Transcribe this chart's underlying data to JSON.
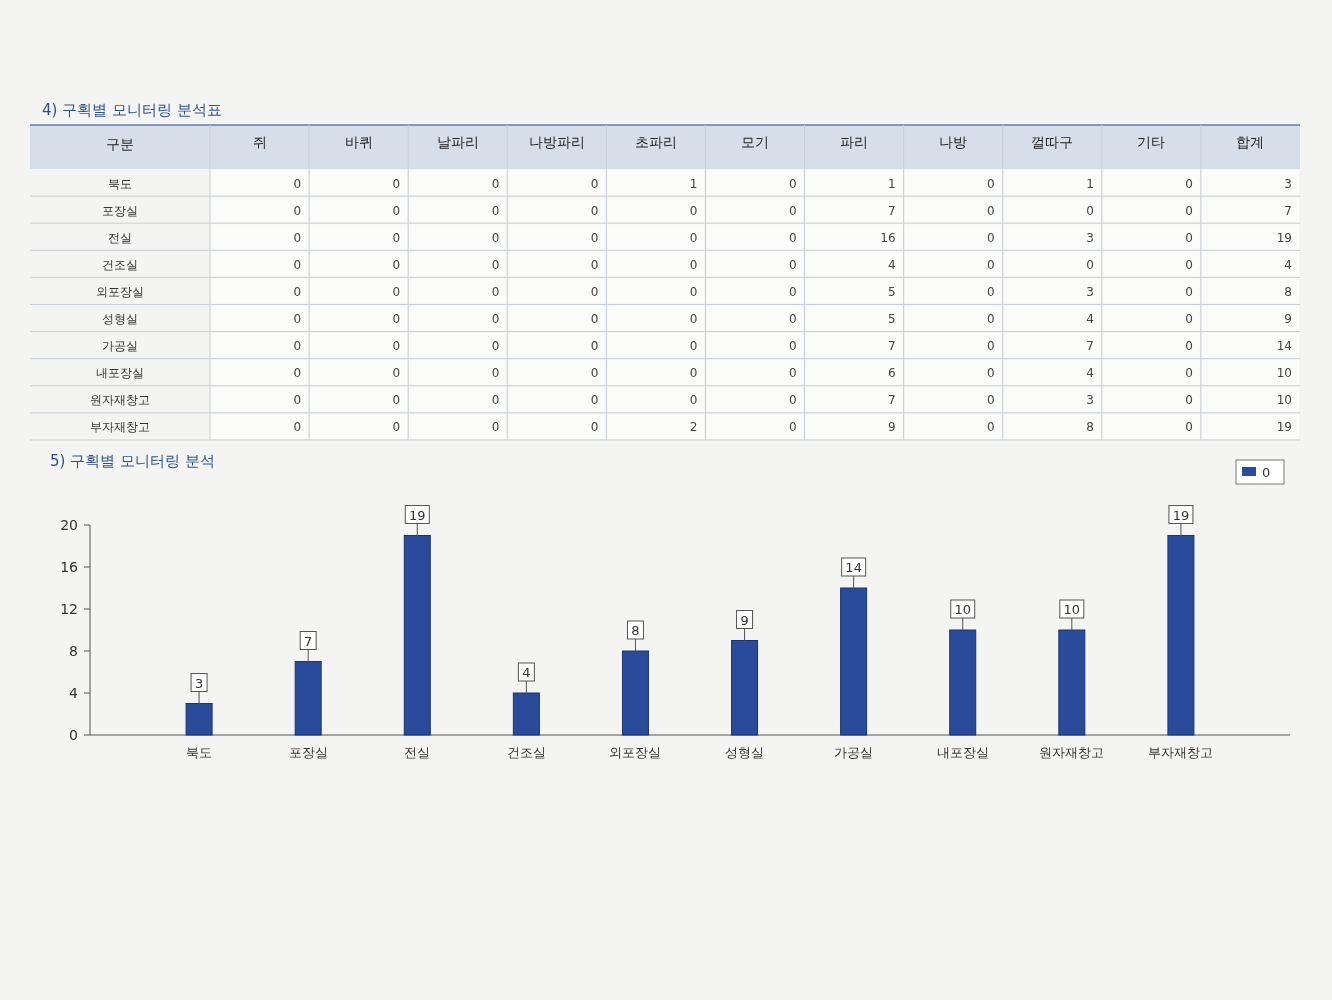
{
  "chart_data": [
    {
      "type": "heatmap",
      "title": "4) 구획별 모니터링 분석표",
      "ylabel": "구분",
      "categories": [
        "쥐",
        "바퀴",
        "날파리",
        "나방파리",
        "초파리",
        "모기",
        "파리",
        "나방",
        "껄따구",
        "기타",
        "합계"
      ],
      "data_labels": true,
      "y_categories": [
        "북도",
        "포장실",
        "전실",
        "건조실",
        "외포장실",
        "성형실",
        "가공실",
        "내포장실",
        "원자재창고",
        "부자재창고"
      ],
      "cells": [
        [
          0,
          0,
          0,
          0,
          1,
          0,
          1,
          0,
          1,
          0,
          3
        ],
        [
          0,
          0,
          0,
          0,
          0,
          0,
          7,
          0,
          0,
          0,
          7
        ],
        [
          0,
          0,
          0,
          0,
          0,
          0,
          16,
          0,
          3,
          0,
          19
        ],
        [
          0,
          0,
          0,
          0,
          0,
          0,
          4,
          0,
          0,
          0,
          4
        ],
        [
          0,
          0,
          0,
          0,
          0,
          0,
          5,
          0,
          3,
          0,
          8
        ],
        [
          0,
          0,
          0,
          0,
          0,
          0,
          5,
          0,
          4,
          0,
          9
        ],
        [
          0,
          0,
          0,
          0,
          0,
          0,
          7,
          0,
          7,
          0,
          14
        ],
        [
          0,
          0,
          0,
          0,
          0,
          0,
          6,
          0,
          4,
          0,
          10
        ],
        [
          0,
          0,
          0,
          0,
          0,
          0,
          7,
          0,
          3,
          0,
          10
        ],
        [
          0,
          0,
          0,
          0,
          2,
          0,
          9,
          0,
          8,
          0,
          19
        ]
      ]
    },
    {
      "type": "bar",
      "title": "5) 구획별 모니터링 분석",
      "categories": [
        "북도",
        "포장실",
        "전실",
        "건조실",
        "외포장실",
        "성형실",
        "가공실",
        "내포장실",
        "원자재창고",
        "부자재창고"
      ],
      "series": [
        {
          "name": "0",
          "color": "#2a4b9a",
          "values": [
            3,
            7,
            19,
            4,
            8,
            9,
            14,
            10,
            10,
            19
          ]
        }
      ],
      "ylim": [
        0,
        20
      ],
      "yticks": [
        0,
        4,
        8,
        12,
        16,
        20
      ],
      "data_labels": true,
      "legend": "top right"
    }
  ]
}
